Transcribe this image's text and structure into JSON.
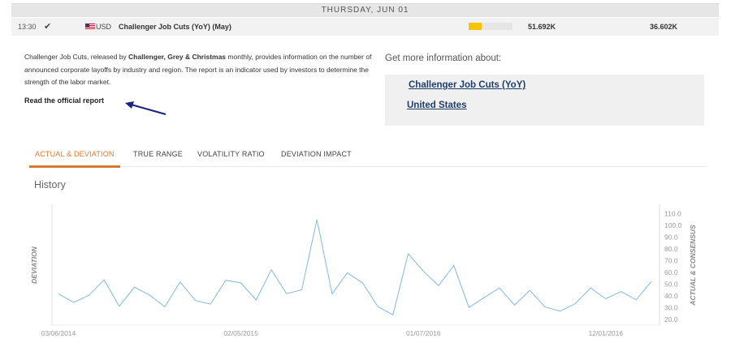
{
  "date_header": "THURSDAY, JUN 01",
  "event": {
    "time": "13:30",
    "check_glyph": "✔",
    "flag_icon": "us-flag-icon",
    "currency": "USD",
    "name": "Challenger Job Cuts (YoY) (May)",
    "impact_level": 0.3,
    "impact_color": "#f5c400",
    "actual": "51.692K",
    "previous": "36.602K"
  },
  "description": {
    "intro": "Challenger Job Cuts, released by ",
    "source_bold": "Challenger, Grey & Christmas",
    "rest": " monthly, provides information on the number of announced corporate layoffs by industry and region. The report is an indicator used by investors to determine the strength of the labor market."
  },
  "official_link": "Read the official report",
  "more_info": {
    "title": "Get more information about:",
    "links": [
      "Challenger Job Cuts (YoY)",
      "United States"
    ]
  },
  "tabs": [
    {
      "label": "ACTUAL & DEVIATION",
      "active": true
    },
    {
      "label": "TRUE RANGE",
      "active": false
    },
    {
      "label": "VOLATILITY RATIO",
      "active": false
    },
    {
      "label": "DEVIATION IMPACT",
      "active": false
    }
  ],
  "history_title": "History",
  "accent_color": "#d9782d",
  "chart_data": {
    "type": "line",
    "ylabel_left": "DEVIATION",
    "ylabel_right": "ACTUAL & CONSENSUS",
    "x_tick_labels": [
      "03/06/2014",
      "02/05/2015",
      "01/07/2016",
      "12/01/2016"
    ],
    "y_ticks": [
      20.0,
      30.0,
      40.0,
      50.0,
      60.0,
      70.0,
      80.0,
      90.0,
      100.0,
      110.0
    ],
    "ylim": [
      15,
      118
    ],
    "series": [
      {
        "color": "#7fb8e0",
        "values": [
          41.7,
          34.4,
          40.4,
          53.6,
          31.1,
          47.3,
          40.5,
          30.6,
          51.8,
          36.0,
          32.9,
          53.2,
          51.0,
          36.4,
          62.2,
          41.8,
          45.2,
          105.0,
          41.7,
          59.5,
          51.1,
          30.9,
          23.7,
          75.8,
          61.1,
          48.6,
          65.9,
          30.0,
          38.4,
          46.7,
          32.1,
          44.6,
          30.5,
          26.8,
          33.4,
          46.7,
          37.4,
          43.6,
          36.6,
          52.2
        ]
      }
    ],
    "grid": false,
    "legend": "none"
  }
}
